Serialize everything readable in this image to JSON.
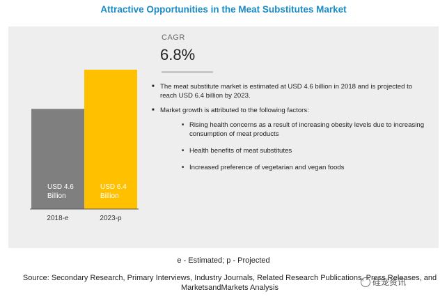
{
  "title": "Attractive Opportunities in the Meat Substitutes Market",
  "cagr": {
    "label": "CAGR",
    "value": "6.8%"
  },
  "bullets": {
    "b1": "The meat substitute market is estimated at USD 4.6 billion in 2018 and is projected to reach USD 6.4 billion by 2023.",
    "b2": "Market growth is attributed to the following factors:",
    "s1": "Rising health concerns as a result of increasing obesity levels due to increasing consumption of meat products",
    "s2": "Health benefits of meat substitutes",
    "s3": "Increased preference of vegetarian and vegan foods"
  },
  "note": "e - Estimated; p - Projected",
  "source": "Source: Secondary Research, Primary Interviews, Industry Journals, Related Research Publications, Press Releases, and MarketsandMarkets Analysis",
  "watermark": "硅宠资讯",
  "chart_data": {
    "type": "bar",
    "categories": [
      "2018-e",
      "2023-p"
    ],
    "values": [
      4.6,
      6.4
    ],
    "bar_labels": [
      [
        "USD 4.6",
        "Billion"
      ],
      [
        "USD 6.4",
        "Billion"
      ]
    ],
    "colors": [
      "#7f7f7f",
      "#ffc000"
    ],
    "ylim": [
      0,
      6.4
    ]
  }
}
